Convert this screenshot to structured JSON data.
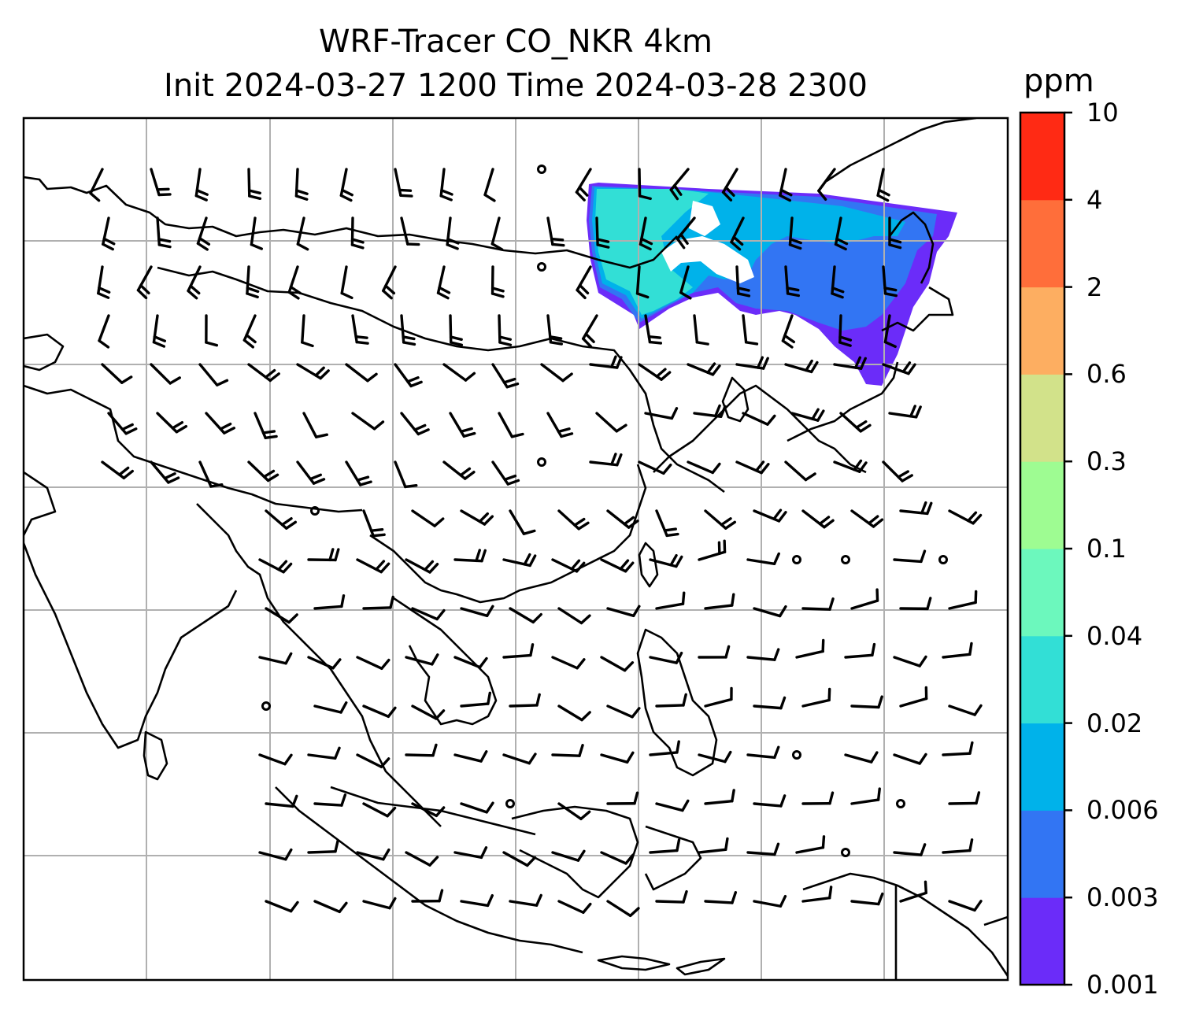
{
  "title": {
    "line1": "WRF-Tracer CO_NKR 4km",
    "line2": "Init 2024-03-27 1200 Time 2024-03-28 2300"
  },
  "colorbar": {
    "unit": "ppm",
    "levels": [
      "10",
      "4",
      "2",
      "0.6",
      "0.3",
      "0.1",
      "0.04",
      "0.02",
      "0.006",
      "0.003",
      "0.001"
    ],
    "colors": [
      "#ff2a14",
      "#ff6e3a",
      "#fdae61",
      "#d2e28a",
      "#9efc92",
      "#6cf8bd",
      "#32dfd6",
      "#00b2ea",
      "#3275f3",
      "#6b2cf9"
    ]
  },
  "map": {
    "gridlines": true,
    "field": "CO_NKR tracer concentration",
    "overlay": "wind barbs"
  }
}
